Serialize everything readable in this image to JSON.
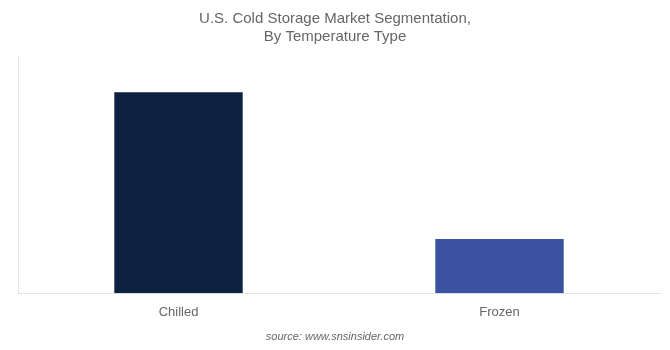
{
  "chart_data": {
    "type": "bar",
    "title": "U.S. Cold Storage Market Segmentation,\nBy Temperature Type",
    "categories": [
      "Chilled",
      "Frozen"
    ],
    "values": [
      100,
      27
    ],
    "colors": [
      "#0d2240",
      "#3a52a0"
    ],
    "ylim": [
      0,
      118
    ],
    "tick_labels": "x",
    "grid": false,
    "annotations": [
      "source: www.snsinsider.com"
    ]
  }
}
